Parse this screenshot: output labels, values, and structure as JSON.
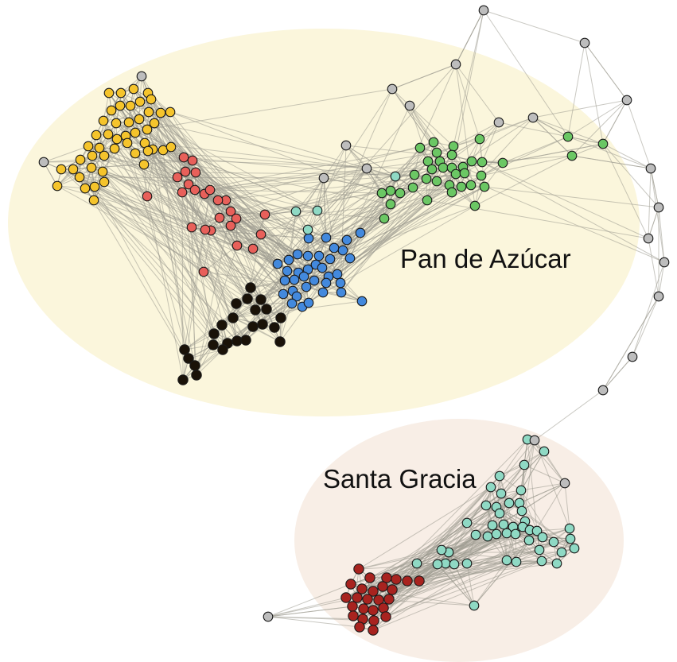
{
  "communities": [
    {
      "id": "pan-de-azucar",
      "label": "Pan de Azúcar",
      "fill": "#fbf6dc"
    },
    {
      "id": "santa-gracia",
      "label": "Santa Gracia",
      "fill": "#f8eee6"
    }
  ],
  "colors": {
    "edge": "#9c9a90",
    "node_outline": "#1a1a1a",
    "yellow": "#f5c42c",
    "red": "#e8605a",
    "green": "#6bc764",
    "blue": "#4389dd",
    "black": "#1a1208",
    "teal": "#8fd9c4",
    "darkred": "#a8231f",
    "gray": "#bdbdbd"
  }
}
